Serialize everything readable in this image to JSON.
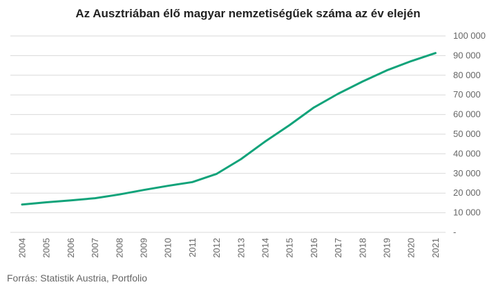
{
  "chart_data": {
    "type": "line",
    "title": "Az Ausztriában élő magyar nemzetiségűek száma az év elején",
    "source": "Forrás: Statistik Austria, Portfolio",
    "x": [
      "2004",
      "2005",
      "2006",
      "2007",
      "2008",
      "2009",
      "2010",
      "2011",
      "2012",
      "2013",
      "2014",
      "2015",
      "2016",
      "2017",
      "2018",
      "2019",
      "2020",
      "2021"
    ],
    "series": [
      {
        "values": [
          14200,
          15300,
          16300,
          17400,
          19300,
          21600,
          23700,
          25600,
          29800,
          37300,
          46300,
          54600,
          63600,
          70600,
          76800,
          82500,
          87200,
          91300
        ]
      }
    ],
    "ylim": [
      0,
      100000
    ],
    "y_ticks": [
      {
        "value": 0,
        "label": "-"
      },
      {
        "value": 10000,
        "label": "10 000"
      },
      {
        "value": 20000,
        "label": "20 000"
      },
      {
        "value": 30000,
        "label": "30 000"
      },
      {
        "value": 40000,
        "label": "40 000"
      },
      {
        "value": 50000,
        "label": "50 000"
      },
      {
        "value": 60000,
        "label": "60 000"
      },
      {
        "value": 70000,
        "label": "70 000"
      },
      {
        "value": 80000,
        "label": "80 000"
      },
      {
        "value": 90000,
        "label": "90 000"
      },
      {
        "value": 100000,
        "label": "100 000"
      }
    ],
    "y_axis_side": "right",
    "grid": true,
    "line_color": "#11a37a",
    "grid_color": "#d9d9d9"
  }
}
